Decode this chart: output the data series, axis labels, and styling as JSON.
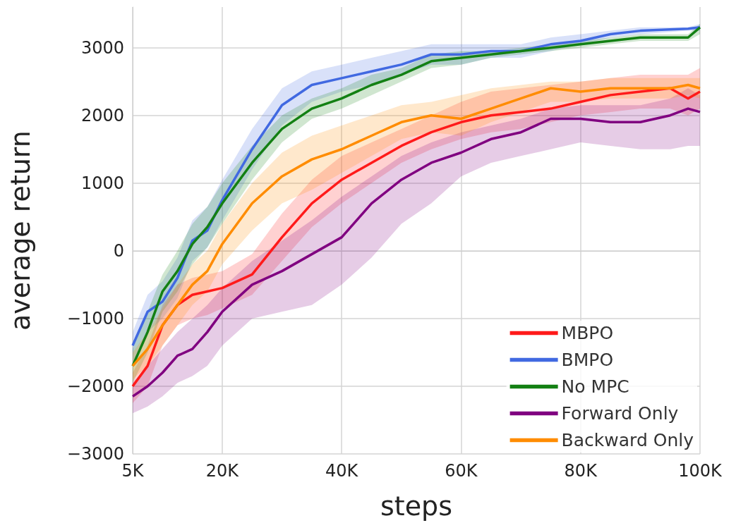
{
  "chart_data": {
    "type": "line",
    "xlabel": "steps",
    "ylabel": "average return",
    "x": [
      5000,
      7500,
      10000,
      12500,
      15000,
      17500,
      20000,
      25000,
      30000,
      35000,
      40000,
      45000,
      50000,
      55000,
      60000,
      65000,
      70000,
      75000,
      80000,
      85000,
      90000,
      95000,
      98000,
      100000
    ],
    "xlim": [
      5000,
      100000
    ],
    "xticks": [
      {
        "value": 5000,
        "label": "5K"
      },
      {
        "value": 20000,
        "label": "20K"
      },
      {
        "value": 40000,
        "label": "40K"
      },
      {
        "value": 60000,
        "label": "60K"
      },
      {
        "value": 80000,
        "label": "80K"
      },
      {
        "value": 100000,
        "label": "100K"
      }
    ],
    "ylim": [
      -3000,
      3600
    ],
    "yticks": [
      {
        "value": -3000,
        "label": "−3000"
      },
      {
        "value": -2000,
        "label": "−2000"
      },
      {
        "value": -1000,
        "label": "−1000"
      },
      0,
      1000,
      2000,
      3000
    ],
    "grid": true,
    "legend": "bottom right",
    "marker": "none",
    "line_style": "solid",
    "series": [
      {
        "name": "MBPO",
        "color": "#ff1a1a",
        "values": [
          -2000,
          -1700,
          -1100,
          -800,
          -650,
          -600,
          -550,
          -350,
          200,
          700,
          1050,
          1300,
          1550,
          1750,
          1900,
          2000,
          2050,
          2100,
          2200,
          2300,
          2350,
          2400,
          2250,
          2350
        ],
        "upper": [
          -1800,
          -1400,
          -800,
          -500,
          -400,
          -350,
          -300,
          -50,
          550,
          1050,
          1400,
          1600,
          1800,
          2000,
          2200,
          2350,
          2400,
          2450,
          2500,
          2550,
          2600,
          2600,
          2600,
          2700
        ],
        "lower": [
          -2250,
          -2000,
          -1400,
          -1100,
          -1000,
          -950,
          -850,
          -650,
          -150,
          350,
          700,
          1000,
          1300,
          1500,
          1650,
          1750,
          1800,
          1900,
          2000,
          2050,
          2100,
          2100,
          2000,
          2100
        ]
      },
      {
        "name": "BMPO",
        "color": "#4169e1",
        "values": [
          -1400,
          -900,
          -750,
          -400,
          150,
          300,
          750,
          1500,
          2150,
          2450,
          2550,
          2650,
          2750,
          2900,
          2900,
          2950,
          2950,
          3050,
          3100,
          3200,
          3250,
          3270,
          3280,
          3300
        ],
        "upper": [
          -1200,
          -650,
          -450,
          -100,
          450,
          650,
          1050,
          1800,
          2400,
          2650,
          2750,
          2850,
          2950,
          3050,
          3050,
          3050,
          3050,
          3150,
          3200,
          3250,
          3300,
          3300,
          3300,
          3350
        ],
        "lower": [
          -1700,
          -1200,
          -1000,
          -700,
          -150,
          50,
          450,
          1200,
          1850,
          2200,
          2350,
          2450,
          2600,
          2750,
          2750,
          2850,
          2850,
          2950,
          3050,
          3150,
          3200,
          3230,
          3250,
          3250
        ]
      },
      {
        "name": "No MPC",
        "color": "#138013",
        "values": [
          -1700,
          -1200,
          -600,
          -300,
          100,
          350,
          700,
          1300,
          1800,
          2100,
          2250,
          2450,
          2600,
          2800,
          2850,
          2900,
          2950,
          3000,
          3050,
          3100,
          3150,
          3150,
          3150,
          3300
        ],
        "upper": [
          -1450,
          -900,
          -350,
          0,
          400,
          650,
          1000,
          1550,
          2000,
          2250,
          2400,
          2600,
          2700,
          2900,
          2950,
          2950,
          3000,
          3050,
          3100,
          3150,
          3200,
          3200,
          3200,
          3350
        ],
        "lower": [
          -1950,
          -1500,
          -900,
          -600,
          -200,
          50,
          400,
          1050,
          1600,
          1950,
          2100,
          2300,
          2500,
          2700,
          2750,
          2850,
          2900,
          2950,
          3000,
          3050,
          3100,
          3100,
          3100,
          3200
        ]
      },
      {
        "name": "Forward Only",
        "color": "#800080",
        "values": [
          -2150,
          -2000,
          -1800,
          -1550,
          -1450,
          -1200,
          -900,
          -500,
          -300,
          -50,
          200,
          700,
          1050,
          1300,
          1450,
          1650,
          1750,
          1950,
          1950,
          1900,
          1900,
          2000,
          2100,
          2050
        ],
        "upper": [
          -1950,
          -1700,
          -1450,
          -1200,
          -1000,
          -800,
          -550,
          -150,
          150,
          450,
          800,
          1100,
          1400,
          1600,
          1750,
          1850,
          1950,
          2100,
          2150,
          2150,
          2150,
          2250,
          2400,
          2300
        ],
        "lower": [
          -2400,
          -2300,
          -2150,
          -1950,
          -1850,
          -1700,
          -1400,
          -1000,
          -900,
          -800,
          -500,
          -100,
          400,
          700,
          1100,
          1300,
          1400,
          1500,
          1600,
          1550,
          1500,
          1500,
          1550,
          1550
        ]
      },
      {
        "name": "Backward Only",
        "color": "#ff8c00",
        "values": [
          -1700,
          -1450,
          -1100,
          -800,
          -500,
          -300,
          100,
          700,
          1100,
          1350,
          1500,
          1700,
          1900,
          2000,
          1950,
          2100,
          2250,
          2400,
          2350,
          2400,
          2400,
          2400,
          2450,
          2400
        ],
        "upper": [
          -1500,
          -1200,
          -850,
          -500,
          -200,
          0,
          400,
          1000,
          1450,
          1700,
          1850,
          2000,
          2150,
          2200,
          2300,
          2400,
          2450,
          2500,
          2500,
          2550,
          2550,
          2550,
          2550,
          2550
        ],
        "lower": [
          -1900,
          -1700,
          -1400,
          -1100,
          -800,
          -600,
          -200,
          300,
          700,
          900,
          1150,
          1400,
          1650,
          1750,
          1700,
          1900,
          2050,
          2200,
          2200,
          2250,
          2250,
          2250,
          2300,
          2250
        ]
      }
    ]
  }
}
